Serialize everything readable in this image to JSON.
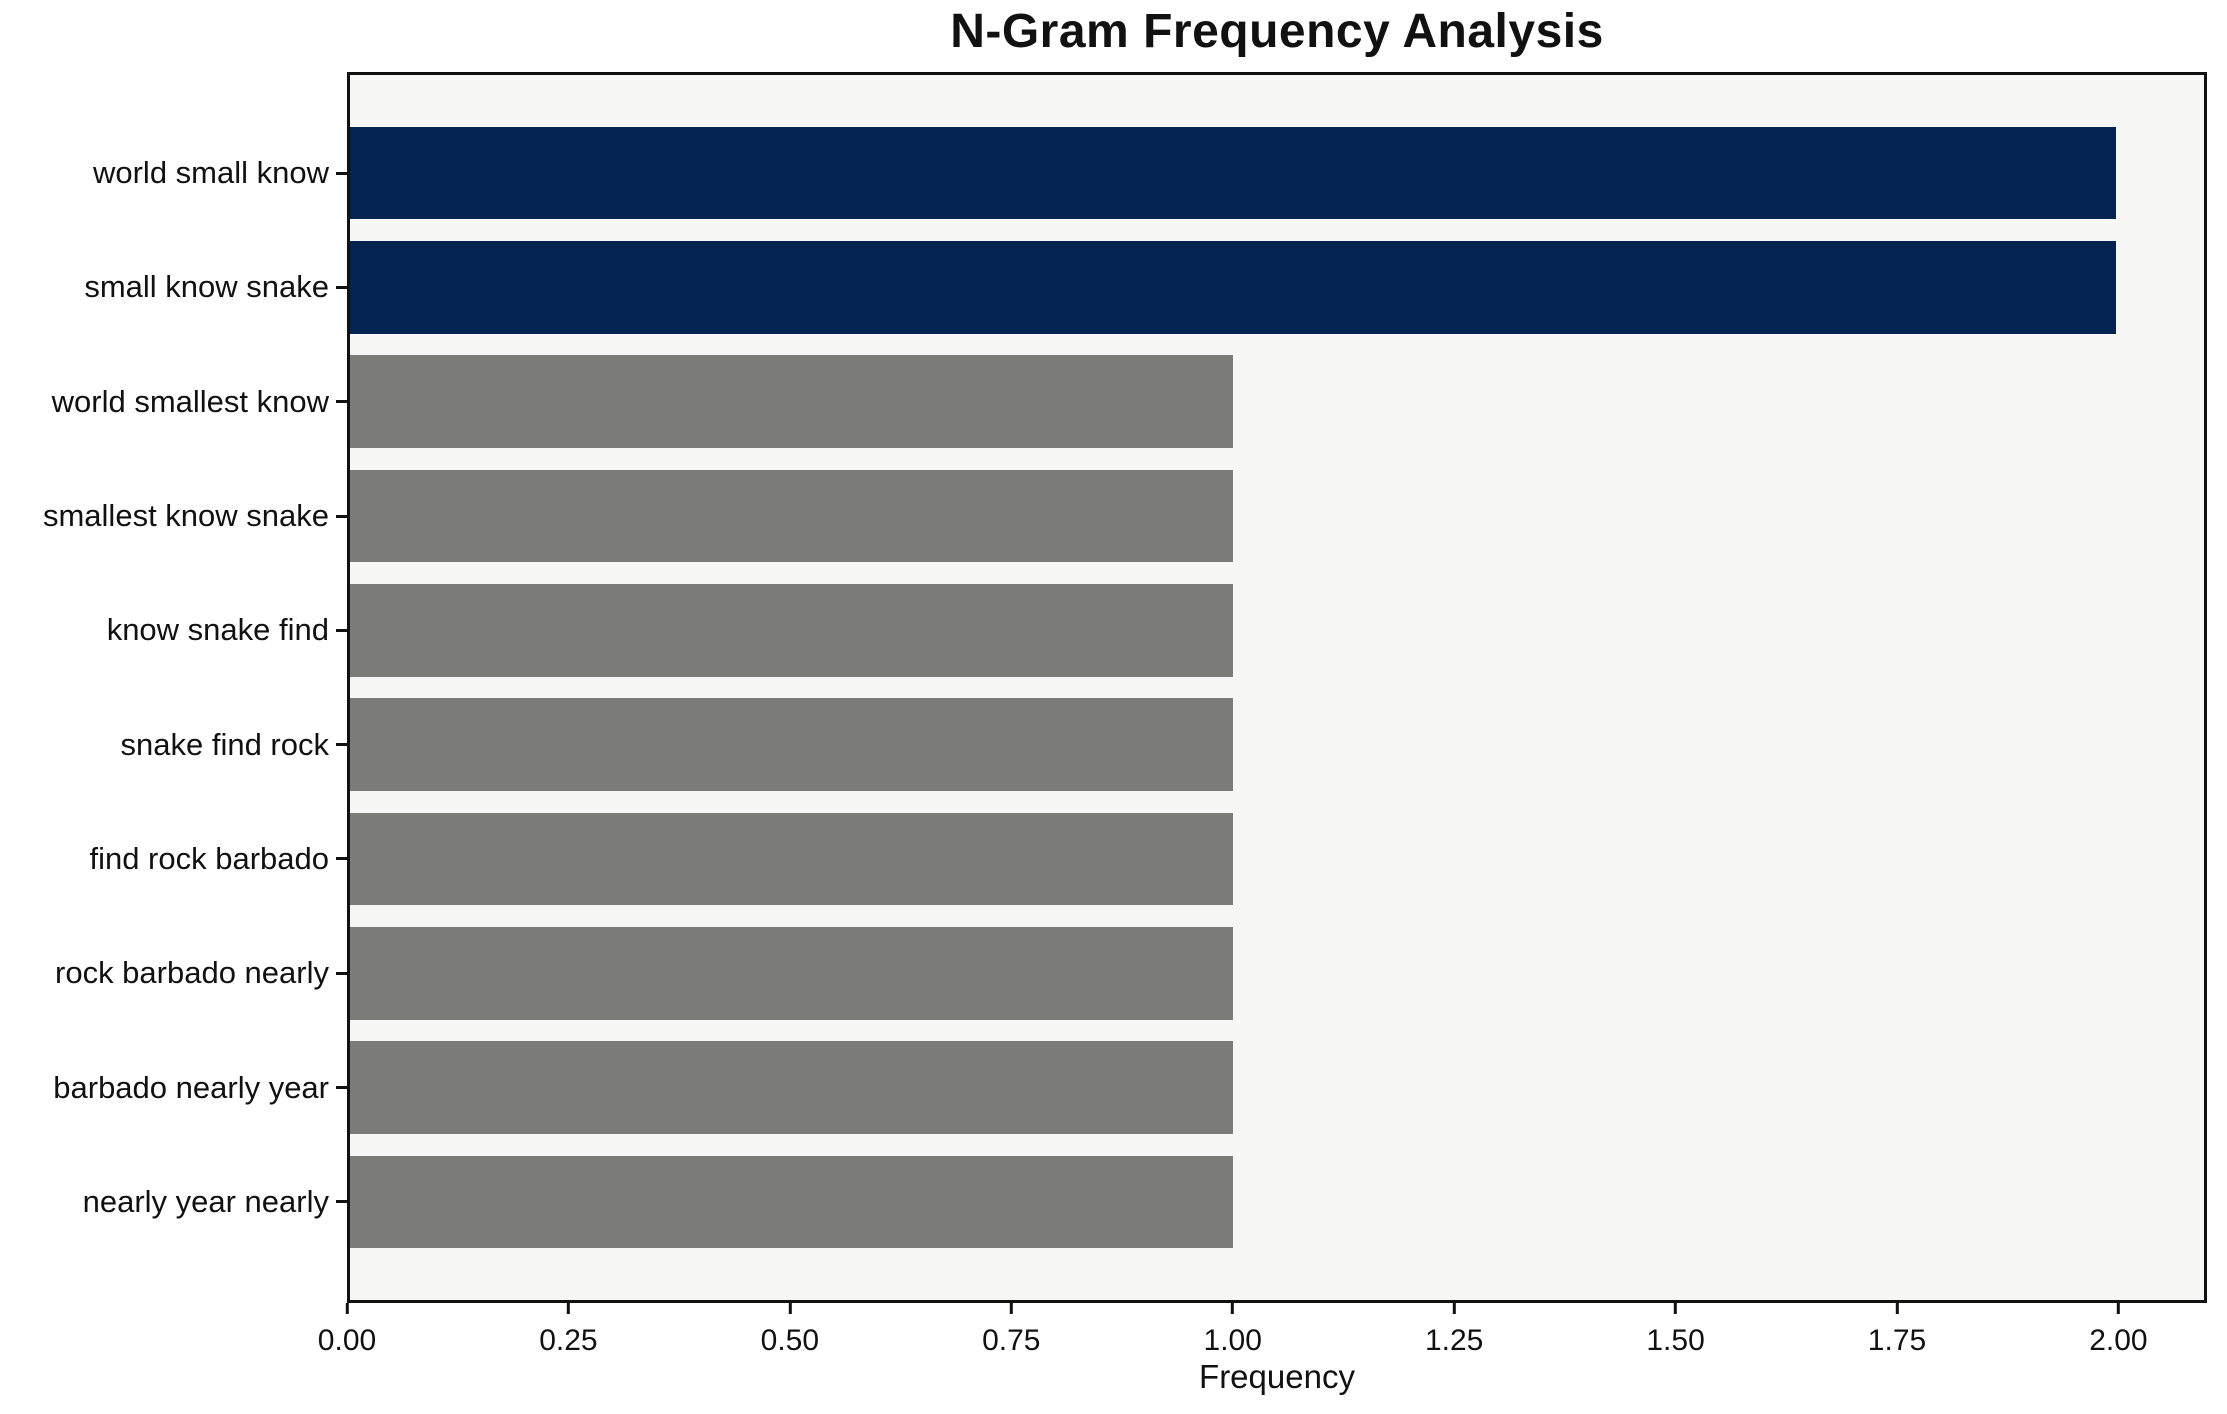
{
  "chart_data": {
    "type": "bar",
    "orientation": "horizontal",
    "title": "N-Gram Frequency Analysis",
    "xlabel": "Frequency",
    "ylabel": "",
    "categories": [
      "world small know",
      "small know snake",
      "world smallest know",
      "smallest know snake",
      "know snake find",
      "snake find rock",
      "find rock barbado",
      "rock barbado nearly",
      "barbado nearly year",
      "nearly year nearly"
    ],
    "values": [
      2,
      2,
      1,
      1,
      1,
      1,
      1,
      1,
      1,
      1
    ],
    "bar_colors": [
      "#032451",
      "#032451",
      "#7b7b78",
      "#7b7b78",
      "#7b7b78",
      "#7b7b78",
      "#7b7b78",
      "#7b7b78",
      "#7b7b78",
      "#7b7b78"
    ],
    "xlim": [
      0,
      2.1
    ],
    "xticks": {
      "values": [
        0,
        0.25,
        0.5,
        0.75,
        1.0,
        1.25,
        1.5,
        1.75,
        2.0
      ],
      "labels": [
        "0.00",
        "0.25",
        "0.50",
        "0.75",
        "1.00",
        "1.25",
        "1.50",
        "1.75",
        "2.00"
      ]
    },
    "grid": false,
    "legend": null,
    "colors": {
      "highlight": "#032451",
      "default": "#7b7b78",
      "plot_background": "#f7f7f6",
      "figure_background": "#ffffff",
      "spine": "#111111",
      "text": "#111111"
    }
  }
}
